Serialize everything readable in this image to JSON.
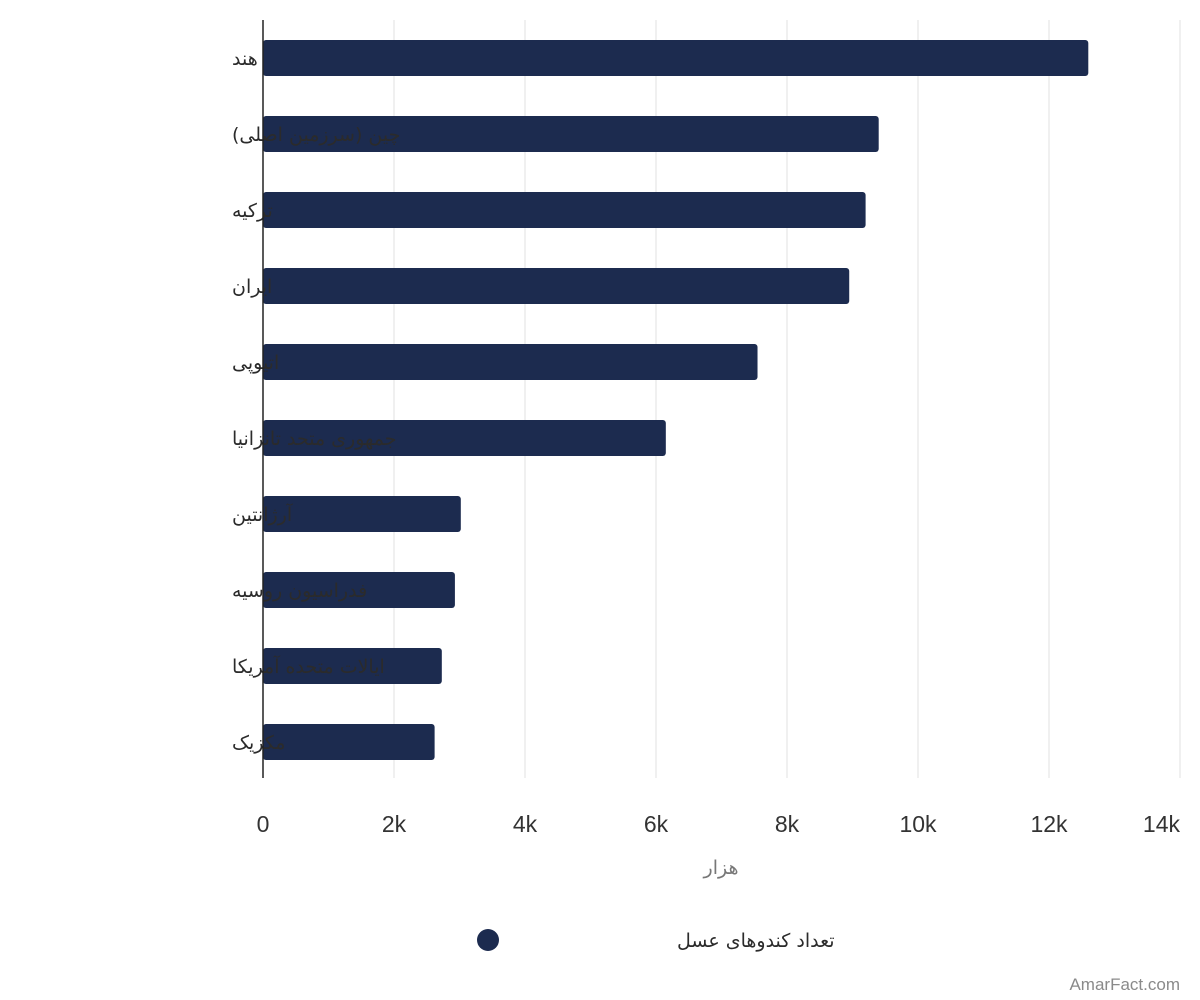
{
  "chart_data": {
    "type": "bar",
    "orientation": "horizontal",
    "categories": [
      "هند",
      "چین (سرزمین اصلی)",
      "ترکیه",
      "ایران",
      "اتیوپی",
      "جمهوری متحد تانزانیا",
      "آرژانتین",
      "فدراسیون روسیه",
      "ایالات متحده آمریکا",
      "مکزیک"
    ],
    "series": [
      {
        "name": "تعداد کندوهای عسل",
        "color": "#1c2b4f",
        "values": [
          12600,
          9400,
          9200,
          8950,
          7550,
          6150,
          3020,
          2930,
          2730,
          2620
        ]
      }
    ],
    "xlabel": "هزار",
    "xlim": [
      0,
      14000
    ],
    "ticks": [
      0,
      2000,
      4000,
      6000,
      8000,
      10000,
      12000,
      14000
    ],
    "tick_labels": [
      "0",
      "2k",
      "4k",
      "6k",
      "8k",
      "10k",
      "12k",
      "14k"
    ],
    "grid": true,
    "legend": "bottom-center"
  },
  "credit": "AmarFact.com"
}
